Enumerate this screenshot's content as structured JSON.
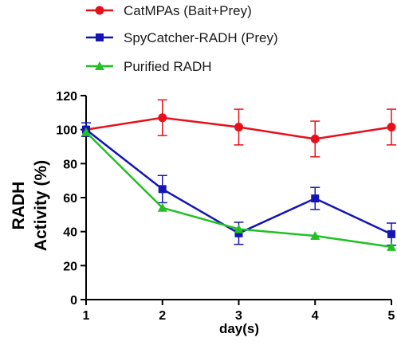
{
  "chart_data": {
    "type": "line",
    "xlabel": "day(s)",
    "ylabel_lines": [
      "RADH",
      "Activity (%)"
    ],
    "x": [
      1,
      2,
      3,
      4,
      5
    ],
    "xlim": [
      1,
      5
    ],
    "ylim": [
      0,
      120
    ],
    "yticks": [
      0,
      20,
      40,
      60,
      80,
      100,
      120
    ],
    "xticks": [
      1,
      2,
      3,
      4,
      5
    ],
    "grid": false,
    "legend_position": "top",
    "series": [
      {
        "name": "CatMPAs (Bait+Prey)",
        "color": "#e8101b",
        "marker": "circle",
        "values": [
          100,
          107,
          101.5,
          94.5,
          101.5
        ],
        "errors": [
          0,
          10.5,
          10.5,
          10.5,
          10.5
        ]
      },
      {
        "name": "SpyCatcher-RADH (Prey)",
        "color": "#1515b5",
        "marker": "square",
        "values": [
          100,
          65,
          39,
          59.5,
          38.5
        ],
        "errors": [
          4,
          8,
          6.5,
          6.5,
          6.5
        ]
      },
      {
        "name": "Purified RADH",
        "color": "#21c121",
        "marker": "triangle",
        "values": [
          98.5,
          54,
          41.5,
          37.5,
          31
        ],
        "errors": [
          0,
          0,
          0,
          0,
          0
        ]
      }
    ]
  }
}
